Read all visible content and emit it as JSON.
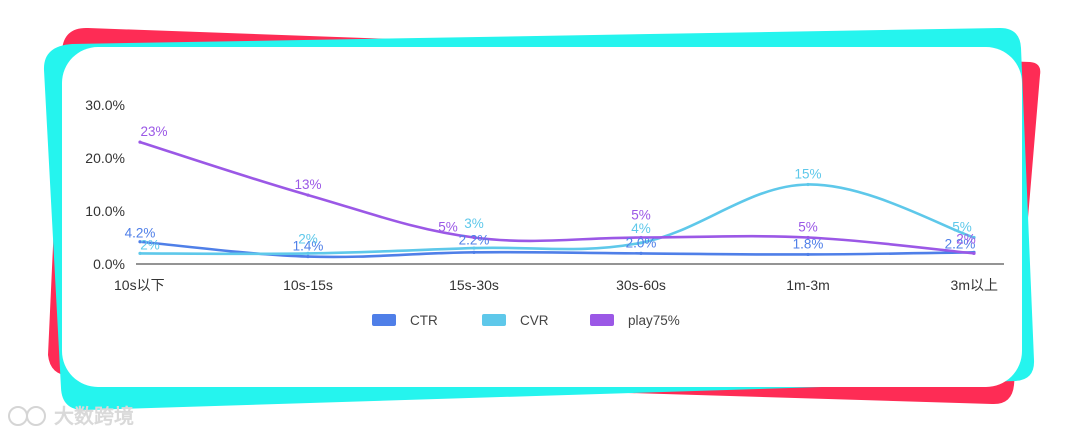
{
  "chart_data": {
    "type": "line",
    "categories": [
      "10s以下",
      "10s-15s",
      "15s-30s",
      "30s-60s",
      "1m-3m",
      "3m以上"
    ],
    "y_ticks": [
      "30.0%",
      "20.0%",
      "10.0%",
      "0.0%"
    ],
    "ylim": [
      0,
      30
    ],
    "series": [
      {
        "name": "CTR",
        "color": "#4f7fe8",
        "values": [
          4.2,
          1.4,
          2.2,
          2.0,
          1.8,
          2.2
        ],
        "labels": [
          "4.2%",
          "1.4%",
          "2.2%",
          "2.0%",
          "1.8%",
          "2.2%"
        ]
      },
      {
        "name": "CVR",
        "color": "#5ec8ea",
        "values": [
          2,
          2,
          3,
          4,
          15,
          5
        ],
        "labels": [
          "2%",
          "2%",
          "3%",
          "4%",
          "15%",
          "5%"
        ]
      },
      {
        "name": "play75%",
        "color": "#9b58e6",
        "values": [
          23,
          13,
          5,
          5,
          5,
          2
        ],
        "labels": [
          "23%",
          "13%",
          "5%",
          "5%",
          "5%",
          "2%"
        ]
      }
    ],
    "legend": [
      "CTR",
      "CVR",
      "play75%"
    ],
    "legend_position": "bottom"
  },
  "decoration": {
    "back_color": "#fe2c55",
    "front_color": "#25f4ee"
  },
  "watermark": {
    "text": "大数跨境"
  }
}
